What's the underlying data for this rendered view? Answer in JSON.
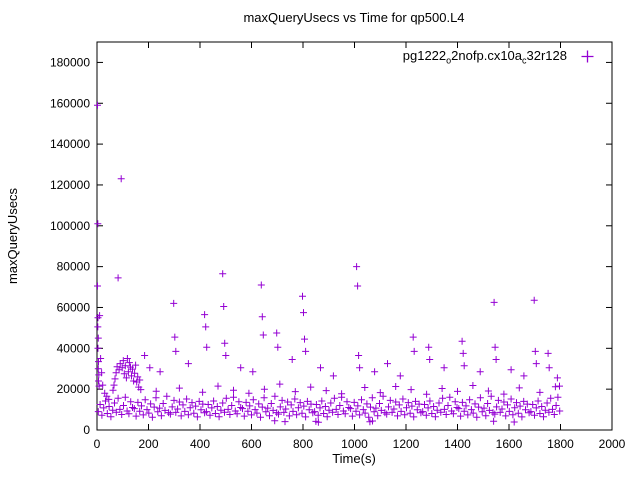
{
  "chart": {
    "title": "maxQueryUsecs vs Time for qp500.L4",
    "xlabel": "Time(s)",
    "ylabel": "maxQueryUsecs"
  },
  "legend": {
    "series_label_plain": "pg1222_o2nofp.cx10a_c32r128",
    "segments": [
      {
        "text": "pg1222",
        "sub": false
      },
      {
        "text": "o",
        "sub": true
      },
      {
        "text": "2nofp.cx10a",
        "sub": false
      },
      {
        "text": "c",
        "sub": true
      },
      {
        "text": "32r128",
        "sub": false
      }
    ],
    "marker_color": "#9400d3"
  },
  "chart_data": {
    "type": "scatter",
    "title": "maxQueryUsecs vs Time for qp500.L4",
    "xlabel": "Time(s)",
    "ylabel": "maxQueryUsecs",
    "series_name": "pg1222_o2nofp.cx10a_c32r128",
    "marker": "plus",
    "color": "#9400d3",
    "grid": false,
    "legend_position": "top-right",
    "xlim": [
      0,
      2000
    ],
    "ylim": [
      0,
      190000
    ],
    "xticks": [
      {
        "v": 0,
        "label": "0"
      },
      {
        "v": 200,
        "label": "200"
      },
      {
        "v": 400,
        "label": "400"
      },
      {
        "v": 600,
        "label": "600"
      },
      {
        "v": 800,
        "label": "800"
      },
      {
        "v": 1000,
        "label": "1000"
      },
      {
        "v": 1200,
        "label": "1200"
      },
      {
        "v": 1400,
        "label": "1400"
      },
      {
        "v": 1600,
        "label": "1600"
      },
      {
        "v": 1800,
        "label": "1800"
      },
      {
        "v": 2000,
        "label": "2000"
      }
    ],
    "yticks": [
      {
        "v": 0,
        "label": "0"
      },
      {
        "v": 20000,
        "label": "20000"
      },
      {
        "v": 40000,
        "label": "40000"
      },
      {
        "v": 60000,
        "label": "60000"
      },
      {
        "v": 80000,
        "label": "80000"
      },
      {
        "v": 100000,
        "label": "100000"
      },
      {
        "v": 120000,
        "label": "120000"
      },
      {
        "v": 140000,
        "label": "140000"
      },
      {
        "v": 160000,
        "label": "160000"
      },
      {
        "v": 180000,
        "label": "180000"
      }
    ],
    "points": [
      [
        2,
        159000
      ],
      [
        3,
        101000
      ],
      [
        2,
        70500
      ],
      [
        4,
        55000
      ],
      [
        3,
        50500
      ],
      [
        5,
        45000
      ],
      [
        4,
        40000
      ],
      [
        6,
        33500
      ],
      [
        5,
        30000
      ],
      [
        7,
        27000
      ],
      [
        6,
        24000
      ],
      [
        8,
        21500
      ],
      [
        10,
        56000
      ],
      [
        14,
        35000
      ],
      [
        18,
        28000
      ],
      [
        22,
        22000
      ],
      [
        30,
        18000
      ],
      [
        38,
        16500
      ],
      [
        46,
        15000
      ],
      [
        5,
        9000
      ],
      [
        12,
        12500
      ],
      [
        19,
        7200
      ],
      [
        26,
        10800
      ],
      [
        33,
        14200
      ],
      [
        40,
        8100
      ],
      [
        47,
        11500
      ],
      [
        54,
        6500
      ],
      [
        61,
        9700
      ],
      [
        68,
        13200
      ],
      [
        75,
        8700
      ],
      [
        82,
        15500
      ],
      [
        89,
        10100
      ],
      [
        96,
        7600
      ],
      [
        103,
        12000
      ],
      [
        110,
        16000
      ],
      [
        117,
        9300
      ],
      [
        124,
        8000
      ],
      [
        131,
        13800
      ],
      [
        138,
        11000
      ],
      [
        62,
        19500
      ],
      [
        66,
        22000
      ],
      [
        70,
        25000
      ],
      [
        74,
        28000
      ],
      [
        78,
        31000
      ],
      [
        82,
        74500
      ],
      [
        86,
        29500
      ],
      [
        90,
        32500
      ],
      [
        94,
        123000
      ],
      [
        98,
        30500
      ],
      [
        102,
        34000
      ],
      [
        106,
        27500
      ],
      [
        110,
        31500
      ],
      [
        114,
        25500
      ],
      [
        118,
        35000
      ],
      [
        122,
        28500
      ],
      [
        126,
        33000
      ],
      [
        130,
        30800
      ],
      [
        134,
        26500
      ],
      [
        138,
        29800
      ],
      [
        142,
        24000
      ],
      [
        146,
        27800
      ],
      [
        150,
        31800
      ],
      [
        154,
        23500
      ],
      [
        158,
        26000
      ],
      [
        162,
        21000
      ],
      [
        166,
        24500
      ],
      [
        170,
        19800
      ],
      [
        145,
        10500
      ],
      [
        152,
        6800
      ],
      [
        159,
        13500
      ],
      [
        166,
        9200
      ],
      [
        173,
        11800
      ],
      [
        180,
        7400
      ],
      [
        187,
        14800
      ],
      [
        194,
        10000
      ],
      [
        201,
        8300
      ],
      [
        208,
        12800
      ],
      [
        215,
        6200
      ],
      [
        222,
        11200
      ],
      [
        229,
        15800
      ],
      [
        236,
        8900
      ],
      [
        243,
        10700
      ],
      [
        250,
        7000
      ],
      [
        257,
        13000
      ],
      [
        264,
        9600
      ],
      [
        271,
        16500
      ],
      [
        278,
        8500
      ],
      [
        285,
        7800
      ],
      [
        292,
        11300
      ],
      [
        299,
        14500
      ],
      [
        306,
        8600
      ],
      [
        313,
        10300
      ],
      [
        320,
        13700
      ],
      [
        327,
        6900
      ],
      [
        334,
        12300
      ],
      [
        341,
        9100
      ],
      [
        348,
        15200
      ],
      [
        355,
        7500
      ],
      [
        362,
        10900
      ],
      [
        369,
        13400
      ],
      [
        376,
        8200
      ],
      [
        383,
        11700
      ],
      [
        390,
        6400
      ],
      [
        397,
        14000
      ],
      [
        404,
        9900
      ],
      [
        411,
        12700
      ],
      [
        418,
        8400
      ],
      [
        425,
        9000
      ],
      [
        432,
        12500
      ],
      [
        439,
        7200
      ],
      [
        446,
        10800
      ],
      [
        453,
        14200
      ],
      [
        460,
        8100
      ],
      [
        467,
        11500
      ],
      [
        474,
        6500
      ],
      [
        481,
        9700
      ],
      [
        488,
        13200
      ],
      [
        495,
        8700
      ],
      [
        502,
        15500
      ],
      [
        509,
        10100
      ],
      [
        516,
        7600
      ],
      [
        523,
        12000
      ],
      [
        530,
        16000
      ],
      [
        537,
        9300
      ],
      [
        544,
        8000
      ],
      [
        551,
        13800
      ],
      [
        558,
        11000
      ],
      [
        565,
        10500
      ],
      [
        572,
        6800
      ],
      [
        579,
        13500
      ],
      [
        586,
        9200
      ],
      [
        593,
        11800
      ],
      [
        600,
        7400
      ],
      [
        607,
        14800
      ],
      [
        614,
        10000
      ],
      [
        621,
        8300
      ],
      [
        628,
        12800
      ],
      [
        635,
        6200
      ],
      [
        642,
        11200
      ],
      [
        649,
        15800
      ],
      [
        656,
        8900
      ],
      [
        663,
        10700
      ],
      [
        670,
        7000
      ],
      [
        677,
        13000
      ],
      [
        684,
        9600
      ],
      [
        691,
        16500
      ],
      [
        698,
        8500
      ],
      [
        705,
        7800
      ],
      [
        712,
        11300
      ],
      [
        719,
        14500
      ],
      [
        726,
        8600
      ],
      [
        733,
        10300
      ],
      [
        740,
        13700
      ],
      [
        747,
        6900
      ],
      [
        754,
        12300
      ],
      [
        761,
        9100
      ],
      [
        768,
        15200
      ],
      [
        775,
        7500
      ],
      [
        782,
        10900
      ],
      [
        789,
        13400
      ],
      [
        796,
        8200
      ],
      [
        803,
        11700
      ],
      [
        810,
        6400
      ],
      [
        817,
        14000
      ],
      [
        824,
        9900
      ],
      [
        831,
        12700
      ],
      [
        838,
        8400
      ],
      [
        845,
        9000
      ],
      [
        852,
        12500
      ],
      [
        859,
        7200
      ],
      [
        866,
        10800
      ],
      [
        873,
        14200
      ],
      [
        880,
        8100
      ],
      [
        887,
        11500
      ],
      [
        894,
        6500
      ],
      [
        901,
        9700
      ],
      [
        908,
        13200
      ],
      [
        915,
        8700
      ],
      [
        922,
        15500
      ],
      [
        929,
        10100
      ],
      [
        936,
        7600
      ],
      [
        943,
        12000
      ],
      [
        950,
        16000
      ],
      [
        957,
        9300
      ],
      [
        964,
        8000
      ],
      [
        971,
        13800
      ],
      [
        978,
        11000
      ],
      [
        985,
        10500
      ],
      [
        992,
        6800
      ],
      [
        999,
        13500
      ],
      [
        1006,
        9200
      ],
      [
        1013,
        11800
      ],
      [
        1020,
        7400
      ],
      [
        1027,
        14800
      ],
      [
        1034,
        10000
      ],
      [
        1041,
        8300
      ],
      [
        1048,
        12800
      ],
      [
        1055,
        6200
      ],
      [
        1062,
        11200
      ],
      [
        1069,
        15800
      ],
      [
        1076,
        8900
      ],
      [
        1083,
        10700
      ],
      [
        1090,
        7000
      ],
      [
        1097,
        13000
      ],
      [
        1104,
        9600
      ],
      [
        1111,
        16500
      ],
      [
        1118,
        8500
      ],
      [
        1125,
        7800
      ],
      [
        1132,
        11300
      ],
      [
        1139,
        14500
      ],
      [
        1146,
        8600
      ],
      [
        1153,
        10300
      ],
      [
        1160,
        13700
      ],
      [
        1167,
        6900
      ],
      [
        1174,
        12300
      ],
      [
        1181,
        9100
      ],
      [
        1188,
        15200
      ],
      [
        1195,
        7500
      ],
      [
        1202,
        10900
      ],
      [
        1209,
        13400
      ],
      [
        1216,
        8200
      ],
      [
        1223,
        11700
      ],
      [
        1230,
        6400
      ],
      [
        1237,
        14000
      ],
      [
        1244,
        9900
      ],
      [
        1251,
        12700
      ],
      [
        1258,
        8400
      ],
      [
        1265,
        9000
      ],
      [
        1272,
        12500
      ],
      [
        1279,
        7200
      ],
      [
        1286,
        10800
      ],
      [
        1293,
        14200
      ],
      [
        1300,
        8100
      ],
      [
        1307,
        11500
      ],
      [
        1314,
        6500
      ],
      [
        1321,
        9700
      ],
      [
        1328,
        13200
      ],
      [
        1335,
        8700
      ],
      [
        1342,
        15500
      ],
      [
        1349,
        10100
      ],
      [
        1356,
        7600
      ],
      [
        1363,
        12000
      ],
      [
        1370,
        16000
      ],
      [
        1377,
        9300
      ],
      [
        1384,
        8000
      ],
      [
        1391,
        13800
      ],
      [
        1398,
        11000
      ],
      [
        1405,
        10500
      ],
      [
        1412,
        6800
      ],
      [
        1419,
        13500
      ],
      [
        1426,
        9200
      ],
      [
        1433,
        11800
      ],
      [
        1440,
        7400
      ],
      [
        1447,
        14800
      ],
      [
        1454,
        10000
      ],
      [
        1461,
        8300
      ],
      [
        1468,
        12800
      ],
      [
        1475,
        6200
      ],
      [
        1482,
        11200
      ],
      [
        1489,
        15800
      ],
      [
        1496,
        8900
      ],
      [
        1503,
        10700
      ],
      [
        1510,
        7000
      ],
      [
        1517,
        13000
      ],
      [
        1524,
        9600
      ],
      [
        1531,
        16500
      ],
      [
        1538,
        8500
      ],
      [
        1545,
        7800
      ],
      [
        1552,
        11300
      ],
      [
        1559,
        14500
      ],
      [
        1566,
        8600
      ],
      [
        1573,
        10300
      ],
      [
        1580,
        13700
      ],
      [
        1587,
        6900
      ],
      [
        1594,
        12300
      ],
      [
        1601,
        9100
      ],
      [
        1608,
        15200
      ],
      [
        1615,
        7500
      ],
      [
        1622,
        10900
      ],
      [
        1629,
        13400
      ],
      [
        1636,
        8200
      ],
      [
        1643,
        11700
      ],
      [
        1650,
        6400
      ],
      [
        1657,
        14000
      ],
      [
        1664,
        9900
      ],
      [
        1671,
        12700
      ],
      [
        1678,
        8400
      ],
      [
        1685,
        9000
      ],
      [
        1692,
        12500
      ],
      [
        1699,
        7200
      ],
      [
        1706,
        10800
      ],
      [
        1713,
        14200
      ],
      [
        1720,
        8100
      ],
      [
        1727,
        11500
      ],
      [
        1734,
        6500
      ],
      [
        1741,
        9700
      ],
      [
        1748,
        13200
      ],
      [
        1755,
        8700
      ],
      [
        1762,
        15500
      ],
      [
        1769,
        10100
      ],
      [
        1776,
        7600
      ],
      [
        1783,
        12000
      ],
      [
        1790,
        16000
      ],
      [
        1797,
        9300
      ],
      [
        185,
        36500
      ],
      [
        205,
        30500
      ],
      [
        245,
        28500
      ],
      [
        298,
        62000
      ],
      [
        302,
        45500
      ],
      [
        306,
        38500
      ],
      [
        355,
        32500
      ],
      [
        418,
        56500
      ],
      [
        422,
        50500
      ],
      [
        426,
        40500
      ],
      [
        488,
        76500
      ],
      [
        492,
        60500
      ],
      [
        496,
        42500
      ],
      [
        500,
        36500
      ],
      [
        558,
        30500
      ],
      [
        605,
        28500
      ],
      [
        638,
        71000
      ],
      [
        642,
        55500
      ],
      [
        646,
        46500
      ],
      [
        698,
        47500
      ],
      [
        702,
        40500
      ],
      [
        758,
        34500
      ],
      [
        798,
        65500
      ],
      [
        802,
        57500
      ],
      [
        806,
        44500
      ],
      [
        810,
        38500
      ],
      [
        868,
        30500
      ],
      [
        918,
        26500
      ],
      [
        1008,
        80000
      ],
      [
        1012,
        70500
      ],
      [
        1016,
        36500
      ],
      [
        1020,
        30500
      ],
      [
        1078,
        28500
      ],
      [
        1128,
        32500
      ],
      [
        1178,
        26500
      ],
      [
        1228,
        45500
      ],
      [
        1232,
        38500
      ],
      [
        1288,
        40500
      ],
      [
        1292,
        34500
      ],
      [
        1348,
        30500
      ],
      [
        1418,
        43500
      ],
      [
        1422,
        37500
      ],
      [
        1426,
        31500
      ],
      [
        1488,
        28500
      ],
      [
        1542,
        62500
      ],
      [
        1546,
        40500
      ],
      [
        1550,
        34500
      ],
      [
        1608,
        29500
      ],
      [
        1658,
        26500
      ],
      [
        1698,
        63500
      ],
      [
        1702,
        38500
      ],
      [
        1706,
        32500
      ],
      [
        1752,
        37500
      ],
      [
        1756,
        30500
      ],
      [
        1788,
        25500
      ],
      [
        1796,
        21500
      ],
      [
        230,
        19000
      ],
      [
        320,
        20500
      ],
      [
        410,
        18500
      ],
      [
        470,
        21500
      ],
      [
        530,
        19500
      ],
      [
        590,
        18000
      ],
      [
        650,
        20000
      ],
      [
        710,
        22500
      ],
      [
        770,
        18800
      ],
      [
        830,
        21000
      ],
      [
        890,
        19300
      ],
      [
        950,
        17800
      ],
      [
        1040,
        20800
      ],
      [
        1100,
        18300
      ],
      [
        1160,
        21300
      ],
      [
        1220,
        19800
      ],
      [
        1280,
        17500
      ],
      [
        1340,
        20300
      ],
      [
        1400,
        18900
      ],
      [
        1460,
        21800
      ],
      [
        1520,
        19100
      ],
      [
        1580,
        17600
      ],
      [
        1640,
        20600
      ],
      [
        1720,
        18400
      ],
      [
        1780,
        21200
      ],
      [
        690,
        4500
      ],
      [
        730,
        4100
      ],
      [
        850,
        4200
      ],
      [
        860,
        3800
      ],
      [
        1060,
        4000
      ],
      [
        1070,
        4400
      ],
      [
        1540,
        4300
      ],
      [
        1620,
        3900
      ]
    ]
  }
}
